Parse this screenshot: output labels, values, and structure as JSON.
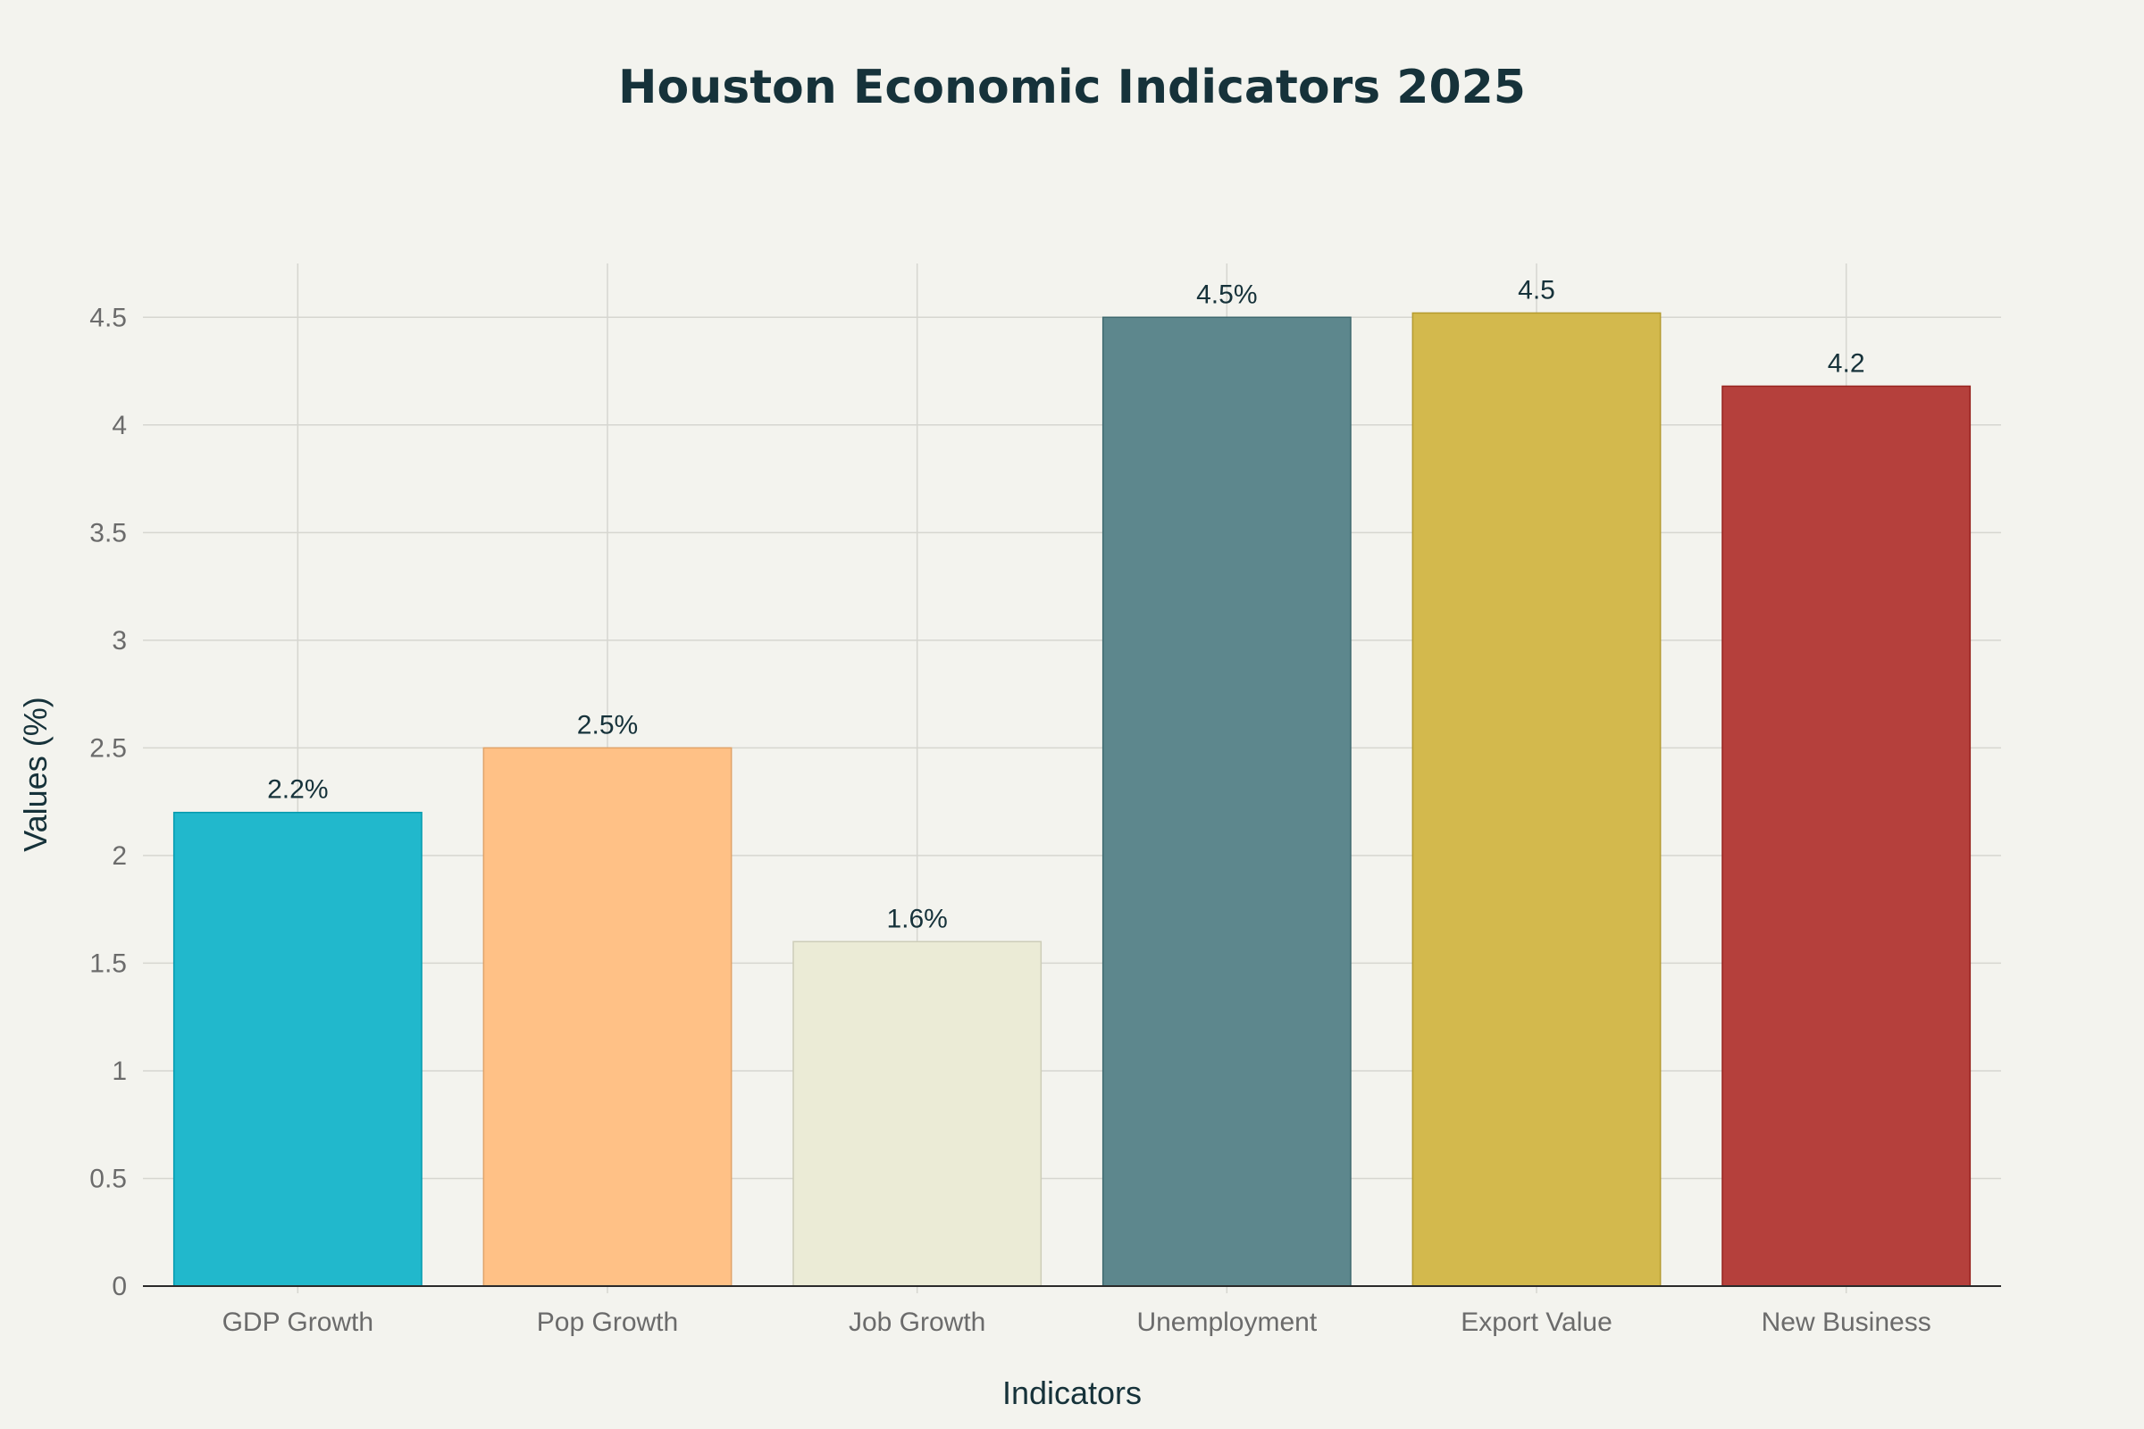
{
  "chart_data": {
    "type": "bar",
    "title": "Houston Economic Indicators 2025",
    "xlabel": "Indicators",
    "ylabel": "Values (%)",
    "categories": [
      "GDP Growth",
      "Pop Growth",
      "Job Growth",
      "Unemployment",
      "Export Value",
      "New Business"
    ],
    "values": [
      2.2,
      2.5,
      1.6,
      4.5,
      4.52,
      4.18
    ],
    "data_labels": [
      "2.2%",
      "2.5%",
      "1.6%",
      "4.5%",
      "4.5",
      "4.2"
    ],
    "colors": [
      "#21b8cc",
      "#ffc186",
      "#ebebd6",
      "#5d878d",
      "#d3b94d",
      "#b5403c"
    ],
    "ylim": [
      0,
      4.75
    ],
    "yticks": [
      0,
      0.5,
      1,
      1.5,
      2,
      2.5,
      3,
      3.5,
      4,
      4.5
    ],
    "ytick_labels": [
      "0",
      "0.5",
      "1",
      "1.5",
      "2",
      "2.5",
      "3",
      "3.5",
      "4",
      "4.5"
    ],
    "grid": true,
    "legend": "none"
  }
}
